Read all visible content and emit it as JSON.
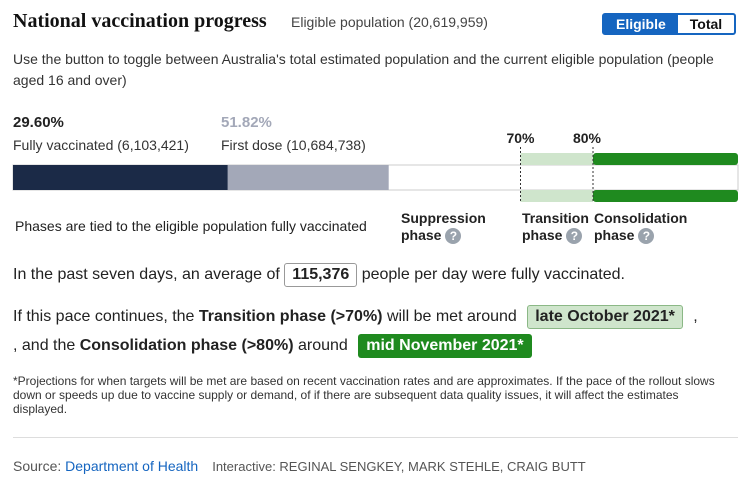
{
  "header": {
    "title": "National vaccination progress",
    "subtitle": "Eligible population (20,619,959)",
    "toggle": [
      "Eligible",
      "Total"
    ]
  },
  "description": "Use the button to toggle between Australia's total estimated population and the current eligible population (people aged 16 and over)",
  "progress": {
    "range": [
      0,
      100
    ],
    "fully": {
      "value": 29.6,
      "label": "29.60%",
      "caption": "Fully vaccinated (6,103,421)",
      "color": "#1b2a47"
    },
    "first": {
      "value": 51.82,
      "label": "51.82%",
      "caption": "First dose (10,684,738)",
      "color": "#a3a8b8"
    },
    "targets": [
      {
        "value": 70,
        "label": "70%",
        "color": "#cfe5cc"
      },
      {
        "value": 80,
        "label": "80%",
        "color": "#1f8a1f"
      }
    ]
  },
  "phases": {
    "note": "Phases are tied to the eligible population fully vaccinated",
    "items": [
      {
        "name": "Suppression",
        "word": "phase"
      },
      {
        "name": "Transition",
        "word": "phase"
      },
      {
        "name": "Consolidation",
        "word": "phase"
      }
    ],
    "help": "?"
  },
  "average": [
    "In the past seven days, an average of ",
    "115,376",
    " people per day were fully vaccinated."
  ],
  "pace": {
    "line1": [
      "If this pace continues, the ",
      "Transition phase (>70%)",
      " will be met around ",
      "late October 2021*",
      " ,"
    ],
    "line2": [
      ", and the ",
      "Consolidation phase (>80%)",
      " around ",
      "mid November 2021*"
    ]
  },
  "footnote": "*Projections for when targets will be met are based on recent vaccination rates and are approximates. If the pace of the rollout slows down or speeds up due to vaccine supply or demand, of if there are subsequent data quality issues, it will affect the estimates displayed.",
  "source": {
    "prefix": "Source: ",
    "link": "Department of Health",
    "credit": "Interactive: REGINAL SENGKEY, MARK STEHLE, CRAIG BUTT"
  }
}
